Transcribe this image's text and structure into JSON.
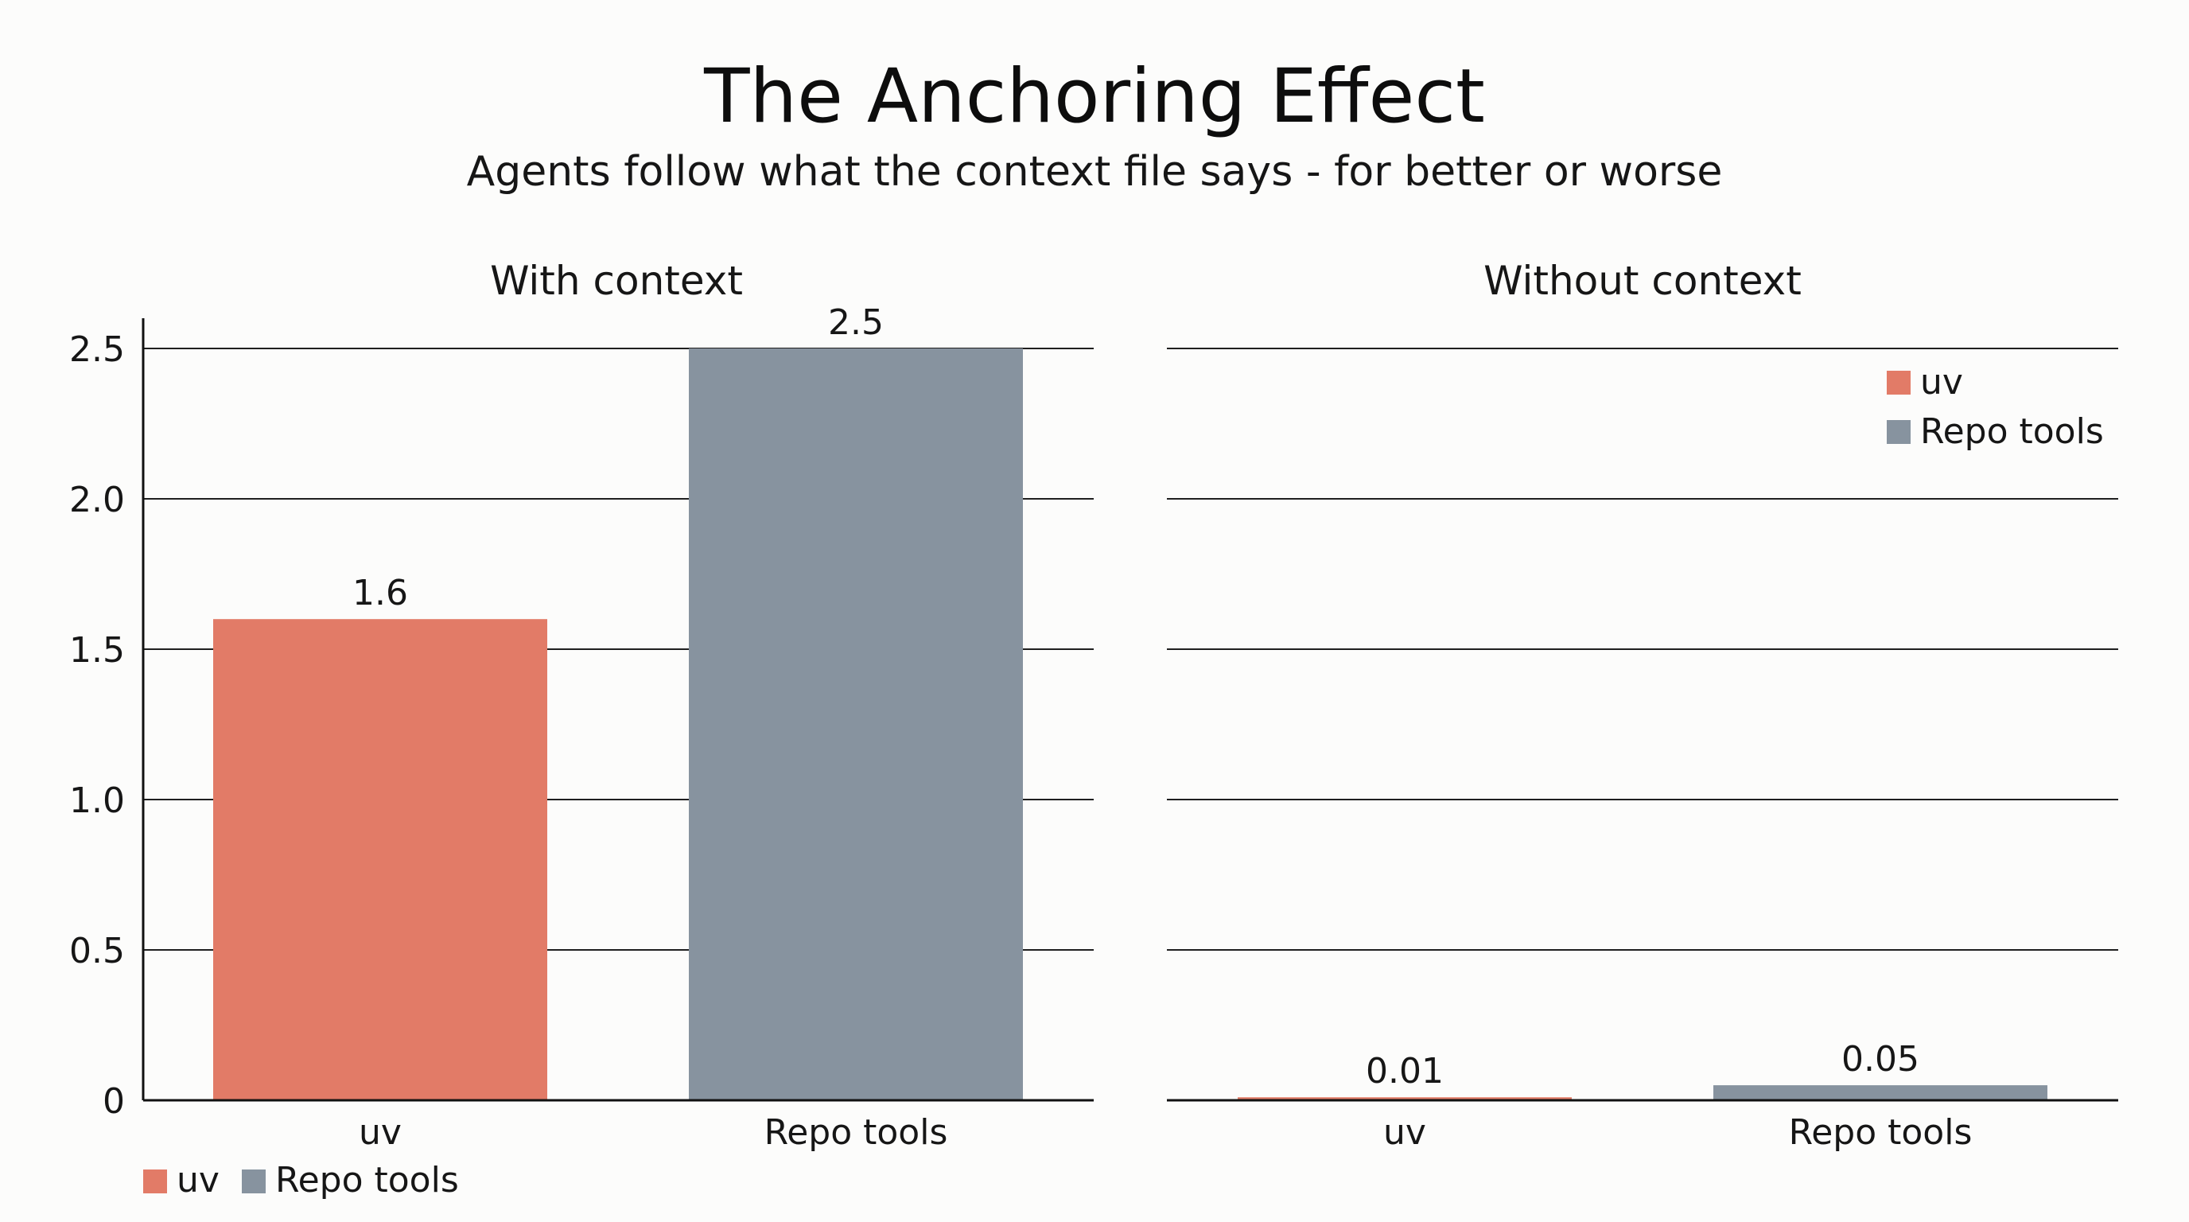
{
  "header": {
    "title": "The Anchoring Effect",
    "subtitle": "Agents follow what the context file says - for better or worse"
  },
  "colors": {
    "uv": "#e27b67",
    "repo_tools": "#87939f"
  },
  "chart_data": [
    {
      "type": "bar",
      "title": "With context",
      "categories": [
        "uv",
        "Repo tools"
      ],
      "values": [
        1.6,
        2.5
      ],
      "value_labels": [
        "1.6",
        "2.5"
      ],
      "ylim": [
        0,
        2.5
      ],
      "yticks": [
        0,
        0.5,
        1.0,
        1.5,
        2.0,
        2.5
      ],
      "ytick_labels": [
        "0",
        "0.5",
        "1.0",
        "1.5",
        "2.0",
        "2.5"
      ],
      "grid": true,
      "legend": {
        "placement": "bottom-left",
        "entries": [
          "uv",
          "Repo tools"
        ]
      }
    },
    {
      "type": "bar",
      "title": "Without context",
      "categories": [
        "uv",
        "Repo tools"
      ],
      "values": [
        0.01,
        0.05
      ],
      "value_labels": [
        "0.01",
        "0.05"
      ],
      "ylim": [
        0,
        2.5
      ],
      "yticks": [
        0,
        0.5,
        1.0,
        1.5,
        2.0,
        2.5
      ],
      "grid": true,
      "legend": {
        "placement": "top-right",
        "entries": [
          "uv",
          "Repo tools"
        ]
      }
    }
  ]
}
